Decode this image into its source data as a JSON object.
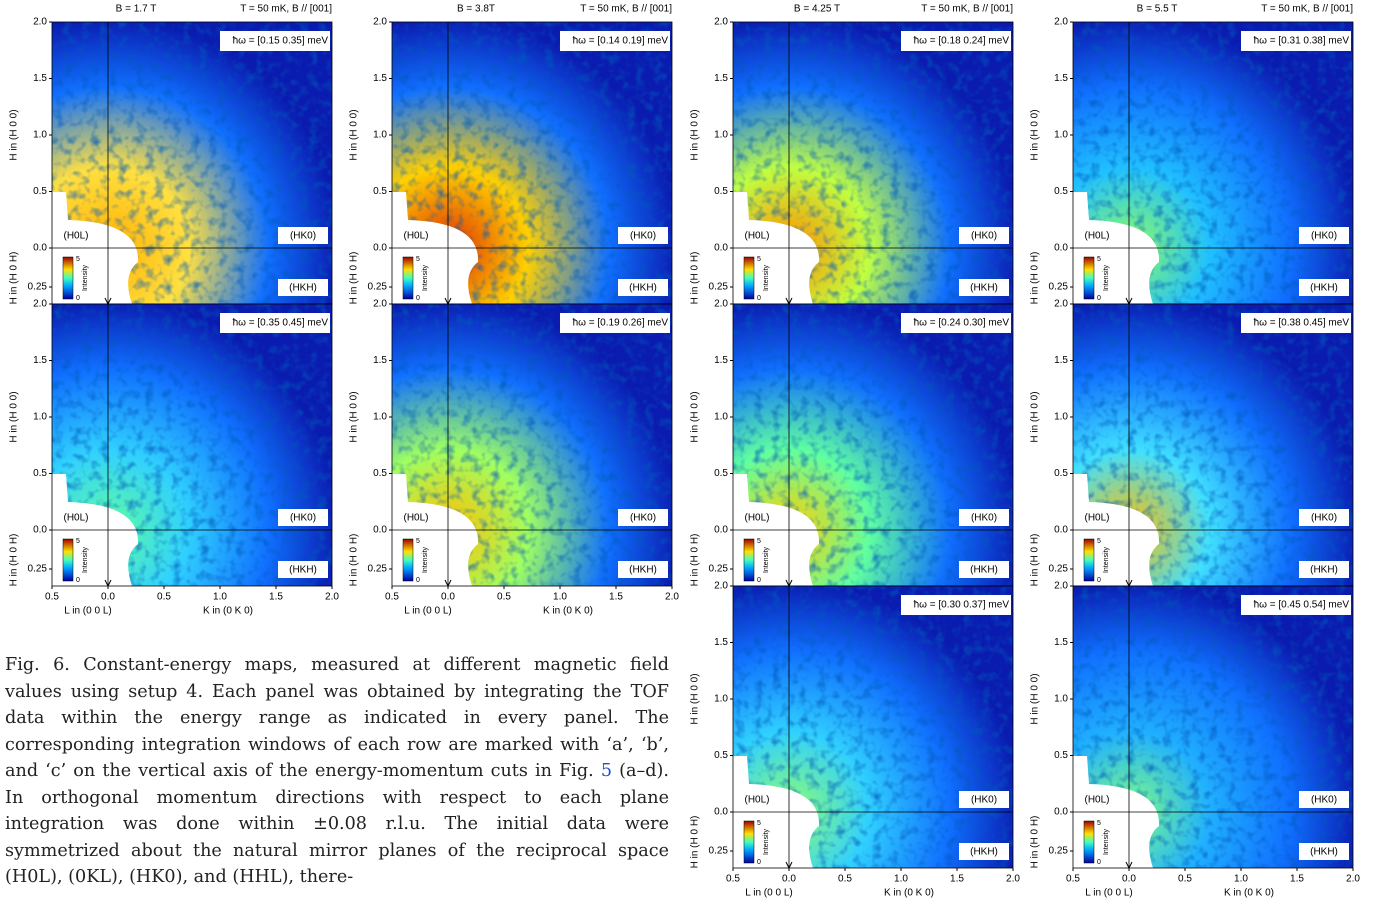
{
  "columns": [
    {
      "field": "B = 1.7 T",
      "conditions": "T = 50 mK, B // [001]",
      "panels": [
        {
          "energy": "ħω = [0.15 0.35] meV"
        },
        {
          "energy": "ħω = [0.35 0.45] meV"
        }
      ]
    },
    {
      "field": "B = 3.8T",
      "conditions": "T = 50 mK, B // [001]",
      "panels": [
        {
          "energy": "ħω = [0.14 0.19] meV"
        },
        {
          "energy": "ħω = [0.19 0.26] meV"
        }
      ]
    },
    {
      "field": "B = 4.25 T",
      "conditions": "T = 50 mK, B // [001]",
      "panels": [
        {
          "energy": "ħω = [0.18 0.24] meV"
        },
        {
          "energy": "ħω = [0.24 0.30] meV"
        },
        {
          "energy": "ħω = [0.30 0.37] meV"
        }
      ]
    },
    {
      "field": "B = 5.5 T",
      "conditions": "T = 50 mK, B // [001]",
      "panels": [
        {
          "energy": "ħω = [0.31 0.38] meV"
        },
        {
          "energy": "ħω = [0.38 0.45] meV"
        },
        {
          "energy": "ħω = [0.45 0.54] meV"
        }
      ]
    }
  ],
  "axes": {
    "y_upper_label": "H in (H 0 0)",
    "y_lower_label": "H in (H 0 H)",
    "x_left_label": "L in (0 0 L)",
    "x_right_label": "K in (0 K 0)",
    "y_upper_ticks": [
      "0.0",
      "0.5",
      "1.0",
      "1.5",
      "2.0"
    ],
    "y_lower_ticks": [
      "0.25"
    ],
    "x_ticks": [
      "0.5",
      "0.0",
      "0.5",
      "1.0",
      "1.5",
      "2.0"
    ]
  },
  "planes": {
    "h0l": "(H0L)",
    "hk0": "(HK0)",
    "hkh": "(HKH)"
  },
  "colorbar": {
    "max": "5",
    "label": "Intensity",
    "min": "0"
  },
  "caption": {
    "before": "Fig. 6. Constant-energy maps, measured at different magnetic field values using setup 4. Each panel was obtained by integrating the TOF data within the energy range as indicated in every panel. The corresponding integration windows of each row are marked with ‘a’, ‘b’, and ‘c’ on the vertical axis of the energy-momentum cuts in Fig. ",
    "link": "5",
    "after": " (a–d). In orthogonal momentum directions with respect to each plane integration was done within ±0.08 r.l.u. The initial data were symmetrized about the natural mirror planes of the reciprocal space (H0L), (0KL), (HK0), and (HHL), there-"
  }
}
